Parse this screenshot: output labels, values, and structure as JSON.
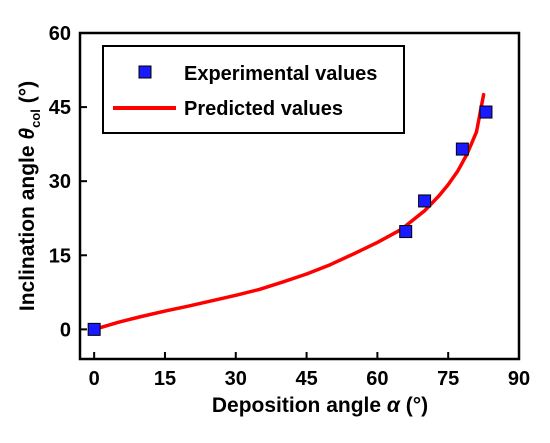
{
  "chart_data": {
    "type": "scatter",
    "xlabel": "Deposition angle",
    "xlabel_symbol": "α",
    "xlabel_unit": " (°)",
    "ylabel": "Inclination angle",
    "ylabel_symbol": "θ",
    "ylabel_subscript": "col",
    "ylabel_unit": " (°)",
    "xlim": [
      -3,
      90
    ],
    "ylim": [
      -6,
      60
    ],
    "xticks": [
      0,
      15,
      30,
      45,
      60,
      75,
      90
    ],
    "yticks": [
      0,
      15,
      30,
      45,
      60
    ],
    "legend_position": "top-left",
    "series": [
      {
        "name": "Experimental values",
        "kind": "markers",
        "marker": "square",
        "color": "#1a1aff",
        "points": [
          {
            "x": 0,
            "y": 0
          },
          {
            "x": 66,
            "y": 19.8
          },
          {
            "x": 70,
            "y": 26
          },
          {
            "x": 78,
            "y": 36.5
          },
          {
            "x": 83,
            "y": 44
          }
        ]
      },
      {
        "name": "Predicted values",
        "kind": "line",
        "color": "#ff0000",
        "points": [
          {
            "x": 0,
            "y": 0
          },
          {
            "x": 5,
            "y": 1.4
          },
          {
            "x": 10,
            "y": 2.6
          },
          {
            "x": 15,
            "y": 3.7
          },
          {
            "x": 20,
            "y": 4.7
          },
          {
            "x": 25,
            "y": 5.8
          },
          {
            "x": 30,
            "y": 6.9
          },
          {
            "x": 35,
            "y": 8.1
          },
          {
            "x": 40,
            "y": 9.6
          },
          {
            "x": 45,
            "y": 11.2
          },
          {
            "x": 50,
            "y": 13.1
          },
          {
            "x": 55,
            "y": 15.3
          },
          {
            "x": 60,
            "y": 17.6
          },
          {
            "x": 65,
            "y": 20.2
          },
          {
            "x": 70,
            "y": 24
          },
          {
            "x": 73,
            "y": 27
          },
          {
            "x": 75,
            "y": 29.3
          },
          {
            "x": 77,
            "y": 32
          },
          {
            "x": 79,
            "y": 35.5
          },
          {
            "x": 81,
            "y": 40
          },
          {
            "x": 82.5,
            "y": 47.5
          }
        ]
      }
    ]
  }
}
